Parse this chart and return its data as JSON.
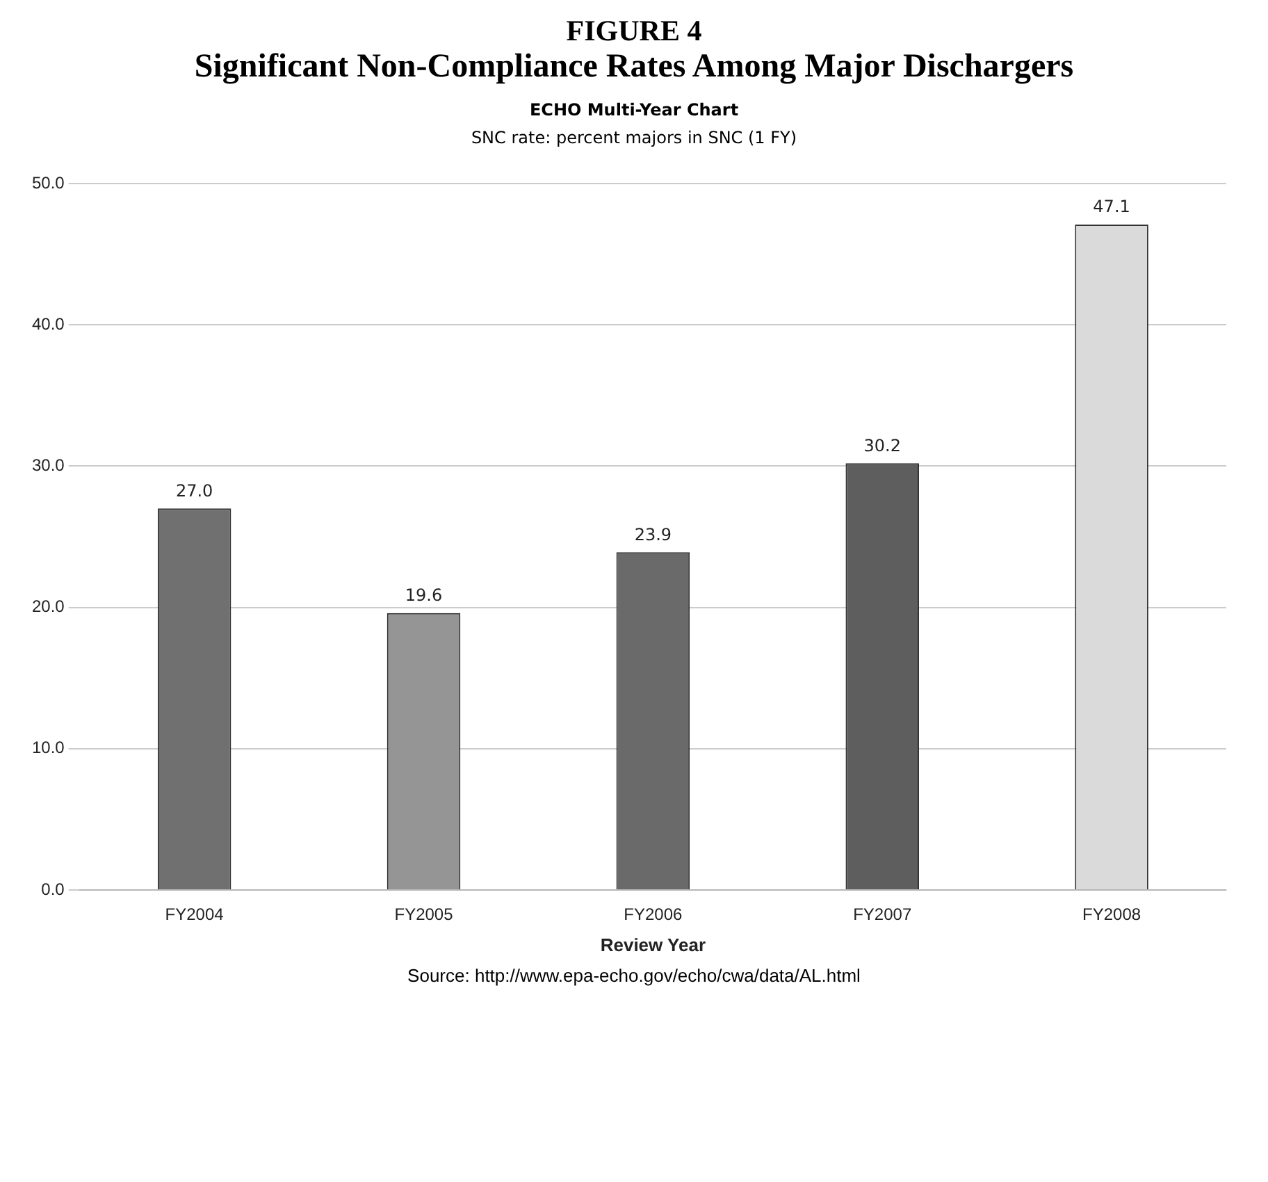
{
  "chart_data": {
    "type": "bar",
    "title": "FIGURE 4",
    "subtitle": "Significant Non-Compliance Rates Among Major Dischargers",
    "annotations": [
      "ECHO Multi-Year Chart",
      "SNC rate: percent majors in SNC (1 FY)",
      "Source:  http://www.epa-echo.gov/echo/cwa/data/AL.html"
    ],
    "xlabel": "Review Year",
    "categories": [
      "FY2004",
      "FY2005",
      "FY2006",
      "FY2007",
      "FY2008"
    ],
    "values": [
      27.0,
      19.6,
      23.9,
      30.2,
      47.1
    ],
    "value_labels": [
      "27.0",
      "19.6",
      "23.9",
      "30.2",
      "47.1"
    ],
    "colors": [
      "#707070",
      "#959595",
      "#6a6a6a",
      "#5e5e5e",
      "#dadada"
    ],
    "ylim": [
      0,
      50
    ],
    "yticks": [
      {
        "value": 0,
        "label": "0.0"
      },
      {
        "value": 10,
        "label": "10.0"
      },
      {
        "value": 20,
        "label": "20.0"
      },
      {
        "value": 30,
        "label": "30.0"
      },
      {
        "value": 40,
        "label": "40.0"
      },
      {
        "value": 50,
        "label": "50.0"
      }
    ],
    "grid": "y"
  }
}
